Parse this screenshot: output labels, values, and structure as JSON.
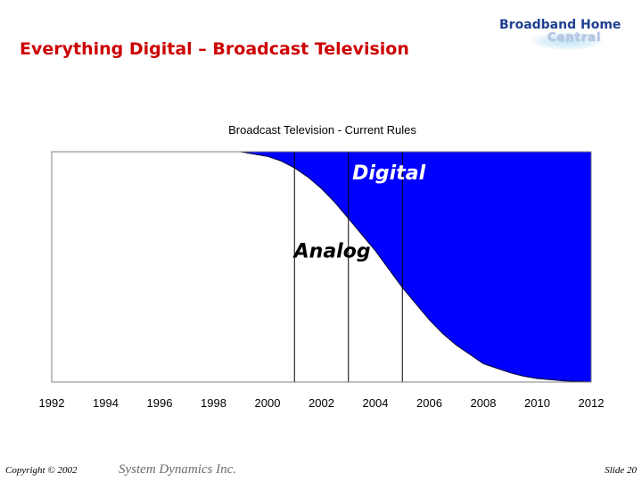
{
  "slide": {
    "title": "Everything Digital – Broadcast Television",
    "logo_line1": "Broadband Home",
    "logo_line2": "Central",
    "copyright": "Copyright © 2002",
    "company": "System Dynamics Inc.",
    "slide_number": "Slide 20"
  },
  "colors": {
    "title": "#cc0000",
    "digital_fill": "#0000ff",
    "logo": "#1f3f8f"
  },
  "chart_data": {
    "type": "area",
    "title": "Broadcast Television - Current Rules",
    "xlabel": "",
    "ylabel": "",
    "x_ticks": [
      1992,
      1994,
      1996,
      1998,
      2000,
      2002,
      2004,
      2006,
      2008,
      2010,
      2012
    ],
    "xlim": [
      1992,
      2012
    ],
    "ylim": [
      0,
      1
    ],
    "grid": false,
    "series": [
      {
        "name": "Digital",
        "x": [
          1992,
          1996,
          1998,
          1999,
          2000,
          2000.5,
          2001,
          2001.5,
          2002,
          2002.5,
          2003,
          2003.5,
          2004,
          2004.5,
          2005,
          2005.5,
          2006,
          2006.5,
          2007,
          2007.5,
          2008,
          2008.5,
          2009,
          2009.5,
          2010,
          2010.5,
          2011,
          2012
        ],
        "values": [
          0,
          0,
          0,
          0,
          0.02,
          0.04,
          0.07,
          0.11,
          0.16,
          0.22,
          0.29,
          0.36,
          0.43,
          0.51,
          0.59,
          0.66,
          0.73,
          0.79,
          0.84,
          0.88,
          0.92,
          0.94,
          0.96,
          0.975,
          0.985,
          0.99,
          0.995,
          1.0
        ]
      },
      {
        "name": "Analog",
        "complement_of": "Digital"
      }
    ],
    "vertical_markers": [
      2001,
      2003,
      2005
    ],
    "annotations": [
      {
        "text": "Digital",
        "x": 2004.5,
        "y": 0.88
      },
      {
        "text": "Analog",
        "x": 2002.4,
        "y": 0.54
      }
    ]
  }
}
